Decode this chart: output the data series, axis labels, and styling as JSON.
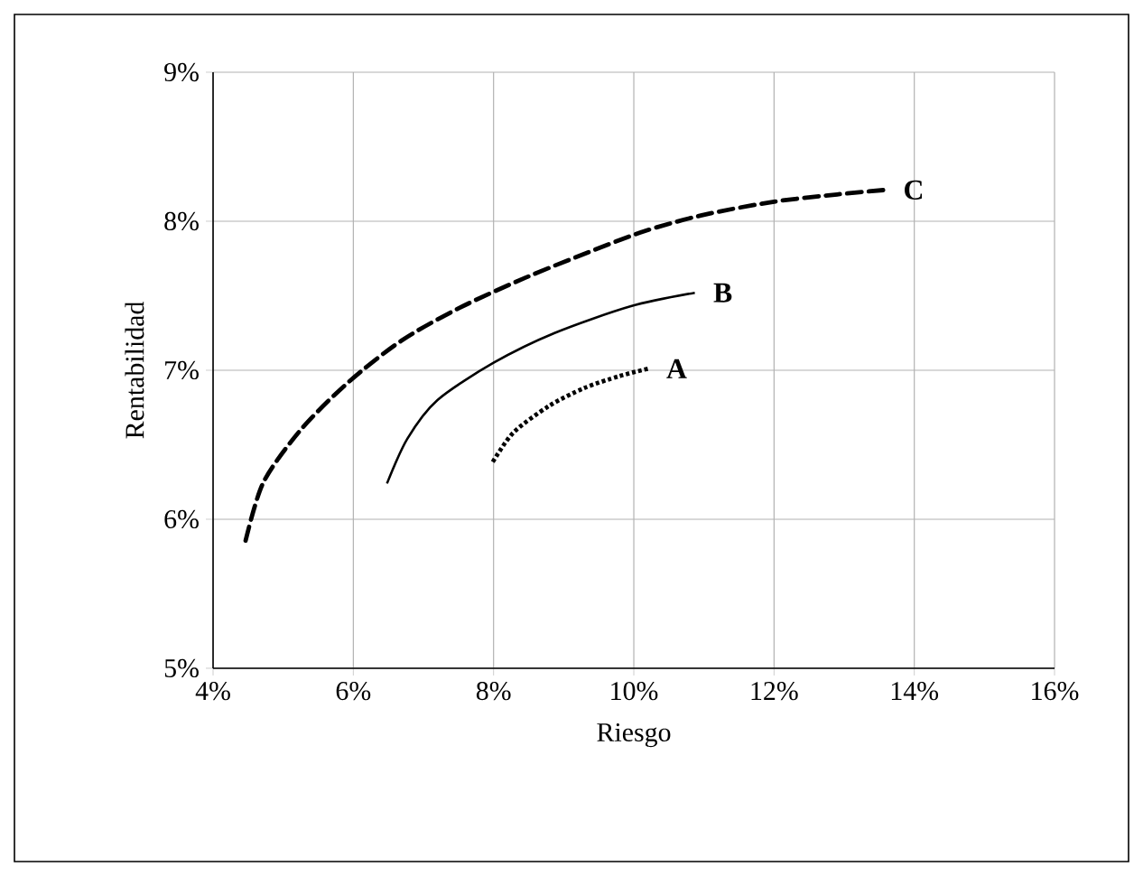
{
  "chart_data": {
    "type": "line",
    "xlabel": "Riesgo",
    "ylabel": "Rentabilidad",
    "xlim": [
      4,
      16
    ],
    "ylim": [
      5,
      9
    ],
    "xticks": [
      {
        "value": 4,
        "label": "4%"
      },
      {
        "value": 6,
        "label": "6%"
      },
      {
        "value": 8,
        "label": "8%"
      },
      {
        "value": 10,
        "label": "10%"
      },
      {
        "value": 12,
        "label": "12%"
      },
      {
        "value": 14,
        "label": "14%"
      },
      {
        "value": 16,
        "label": "16%"
      }
    ],
    "yticks": [
      {
        "value": 5,
        "label": "5%"
      },
      {
        "value": 6,
        "label": "6%"
      },
      {
        "value": 7,
        "label": "7%"
      },
      {
        "value": 8,
        "label": "8%"
      },
      {
        "value": 9,
        "label": "9%"
      }
    ],
    "grid": true,
    "legend": false,
    "marker": "none",
    "series": [
      {
        "name": "A",
        "color": "#000000",
        "line_style": "dotted",
        "x": [
          7.97,
          8.28,
          8.79,
          9.29,
          9.79,
          10.2
        ],
        "values": [
          6.37,
          6.58,
          6.76,
          6.88,
          6.96,
          7.01
        ]
      },
      {
        "name": "B",
        "color": "#000000",
        "line_style": "solid",
        "x": [
          6.48,
          6.77,
          7.2,
          8.0,
          8.87,
          9.96,
          10.87
        ],
        "values": [
          6.24,
          6.54,
          6.8,
          7.05,
          7.25,
          7.43,
          7.52
        ]
      },
      {
        "name": "C",
        "color": "#000000",
        "line_style": "dashed",
        "x": [
          4.44,
          4.71,
          5.25,
          5.93,
          6.69,
          7.52,
          8.45,
          9.29,
          10.13,
          10.97,
          11.98,
          12.9,
          13.58
        ],
        "values": [
          5.81,
          6.24,
          6.6,
          6.92,
          7.2,
          7.42,
          7.62,
          7.78,
          7.93,
          8.04,
          8.13,
          8.18,
          8.21
        ]
      }
    ]
  }
}
